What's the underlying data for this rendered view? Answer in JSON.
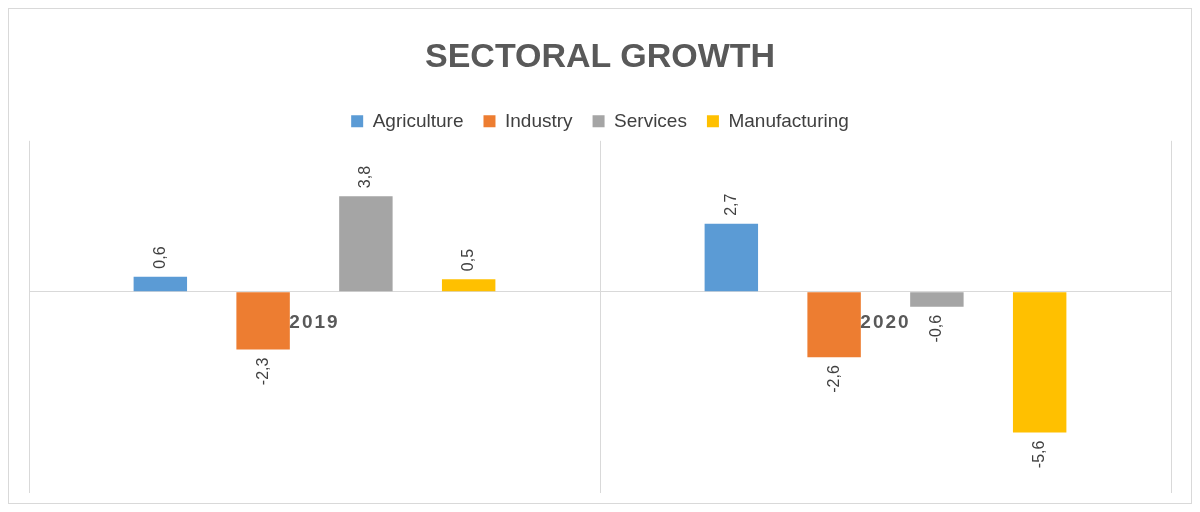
{
  "chart_data": {
    "type": "bar",
    "title": "SECTORAL GROWTH",
    "categories": [
      "2019",
      "2020"
    ],
    "series": [
      {
        "name": "Agriculture",
        "color": "#5b9bd5",
        "values": [
          0.6,
          2.7
        ],
        "value_labels": [
          "0,6",
          "2,7"
        ]
      },
      {
        "name": "Industry",
        "color": "#ed7d31",
        "values": [
          -2.3,
          -2.6
        ],
        "value_labels": [
          "-2,3",
          "-2,6"
        ]
      },
      {
        "name": "Services",
        "color": "#a5a5a5",
        "values": [
          3.8,
          -0.6
        ],
        "value_labels": [
          "3,8",
          "-0,6"
        ]
      },
      {
        "name": "Manufacturing",
        "color": "#ffc000",
        "values": [
          0.5,
          -5.6
        ],
        "value_labels": [
          "0,5",
          "-5,6"
        ]
      }
    ],
    "legend": "top",
    "grid": "x",
    "tick_labels": "x"
  }
}
